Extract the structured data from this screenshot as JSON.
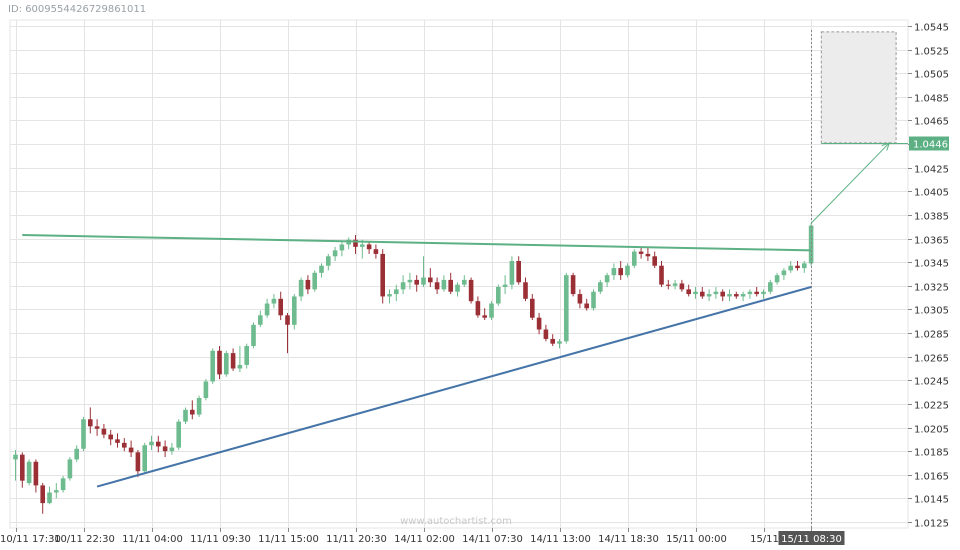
{
  "chart_id_label": "ID: 6009554426729861011",
  "watermark": "www.autochartist.com",
  "colors": {
    "bull": "#6dbb8e",
    "bear": "#9b2f36",
    "resistance": "#5cb083",
    "support": "#4574a8",
    "target": "#5cb083",
    "grid": "#e4e4e4",
    "projection_fill": "#ececec",
    "current_badge": "#555555"
  },
  "chart_data": {
    "type": "candlestick",
    "title": "",
    "xlabel": "",
    "ylabel": "",
    "ylim": [
      1.0125,
      1.0545
    ],
    "y_ticks": [
      "1.0125",
      "1.0145",
      "1.0165",
      "1.0185",
      "1.0205",
      "1.0225",
      "1.0245",
      "1.0265",
      "1.0285",
      "1.0305",
      "1.0325",
      "1.0345",
      "1.0365",
      "1.0385",
      "1.0405",
      "1.0425",
      "1.0445",
      "1.0465",
      "1.0485",
      "1.0505",
      "1.0525",
      "1.0545"
    ],
    "x_ticks": [
      "10/11 17:30",
      "10/11 22:30",
      "11/11 04:00",
      "11/11 09:30",
      "11/11 15:00",
      "11/11 20:30",
      "14/11 02:00",
      "14/11 07:30",
      "14/11 13:00",
      "14/11 18:30",
      "15/11 00:00",
      "15/11 ",
      "15/11 08:30"
    ],
    "x_tick_candle_index": [
      0,
      10,
      20,
      30,
      40,
      50,
      60,
      70,
      80,
      90,
      100,
      110,
      117
    ],
    "current_x_label": "15/11 08:30",
    "target_price": "1.0446",
    "candles": [
      [
        1.0178,
        1.0186,
        1.016,
        1.0182
      ],
      [
        1.0182,
        1.0184,
        1.0154,
        1.016
      ],
      [
        1.0158,
        1.0178,
        1.0156,
        1.0176
      ],
      [
        1.0176,
        1.0178,
        1.015,
        1.0156
      ],
      [
        1.0156,
        1.0158,
        1.0132,
        1.0141
      ],
      [
        1.0141,
        1.0155,
        1.014,
        1.015
      ],
      [
        1.015,
        1.0158,
        1.0145,
        1.0152
      ],
      [
        1.0152,
        1.0164,
        1.015,
        1.0162
      ],
      [
        1.0162,
        1.018,
        1.016,
        1.0178
      ],
      [
        1.0178,
        1.019,
        1.0176,
        1.0187
      ],
      [
        1.0187,
        1.0214,
        1.0185,
        1.0212
      ],
      [
        1.0212,
        1.0222,
        1.02,
        1.0206
      ],
      [
        1.0206,
        1.0212,
        1.0198,
        1.0204
      ],
      [
        1.0204,
        1.0208,
        1.0196,
        1.0199
      ],
      [
        1.0199,
        1.0203,
        1.019,
        1.0195
      ],
      [
        1.0195,
        1.02,
        1.0188,
        1.0192
      ],
      [
        1.0192,
        1.0196,
        1.0185,
        1.0188
      ],
      [
        1.0188,
        1.0194,
        1.018,
        1.0184
      ],
      [
        1.0184,
        1.0186,
        1.0163,
        1.0168
      ],
      [
        1.0168,
        1.0192,
        1.0166,
        1.019
      ],
      [
        1.019,
        1.0198,
        1.0186,
        1.0193
      ],
      [
        1.0193,
        1.0198,
        1.0184,
        1.0189
      ],
      [
        1.0189,
        1.0194,
        1.018,
        1.0185
      ],
      [
        1.0185,
        1.0192,
        1.0182,
        1.0188
      ],
      [
        1.0188,
        1.0212,
        1.0186,
        1.021
      ],
      [
        1.021,
        1.0222,
        1.0208,
        1.022
      ],
      [
        1.022,
        1.0228,
        1.0212,
        1.0216
      ],
      [
        1.0216,
        1.0232,
        1.0214,
        1.023
      ],
      [
        1.023,
        1.0246,
        1.0228,
        1.0244
      ],
      [
        1.0244,
        1.0272,
        1.0242,
        1.027
      ],
      [
        1.027,
        1.0274,
        1.0246,
        1.025
      ],
      [
        1.025,
        1.027,
        1.0248,
        1.0268
      ],
      [
        1.0268,
        1.0272,
        1.0253,
        1.0255
      ],
      [
        1.0255,
        1.0274,
        1.0252,
        1.0258
      ],
      [
        1.0258,
        1.0276,
        1.0255,
        1.0274
      ],
      [
        1.0274,
        1.0294,
        1.0272,
        1.0292
      ],
      [
        1.0292,
        1.0304,
        1.029,
        1.03
      ],
      [
        1.03,
        1.0314,
        1.0298,
        1.031
      ],
      [
        1.031,
        1.0318,
        1.0306,
        1.0314
      ],
      [
        1.0314,
        1.032,
        1.0296,
        1.03
      ],
      [
        1.03,
        1.0302,
        1.0268,
        1.0292
      ],
      [
        1.0292,
        1.0318,
        1.0288,
        1.0316
      ],
      [
        1.0316,
        1.0332,
        1.0312,
        1.033
      ],
      [
        1.033,
        1.0334,
        1.0318,
        1.0322
      ],
      [
        1.0322,
        1.0338,
        1.032,
        1.0336
      ],
      [
        1.0336,
        1.0344,
        1.0332,
        1.0342
      ],
      [
        1.0342,
        1.0352,
        1.0338,
        1.035
      ],
      [
        1.035,
        1.0358,
        1.0346,
        1.0355
      ],
      [
        1.0355,
        1.0362,
        1.035,
        1.036
      ],
      [
        1.036,
        1.0366,
        1.0356,
        1.0364
      ],
      [
        1.0364,
        1.0368,
        1.0352,
        1.0358
      ],
      [
        1.0358,
        1.0364,
        1.0348,
        1.036
      ],
      [
        1.036,
        1.0362,
        1.0352,
        1.0356
      ],
      [
        1.0356,
        1.036,
        1.0348,
        1.0352
      ],
      [
        1.0352,
        1.0356,
        1.031,
        1.0316
      ],
      [
        1.0316,
        1.0322,
        1.031,
        1.0318
      ],
      [
        1.0318,
        1.0326,
        1.0312,
        1.0322
      ],
      [
        1.0322,
        1.0334,
        1.0318,
        1.0328
      ],
      [
        1.0328,
        1.0336,
        1.0322,
        1.033
      ],
      [
        1.033,
        1.0334,
        1.032,
        1.0326
      ],
      [
        1.0326,
        1.035,
        1.0324,
        1.0332
      ],
      [
        1.0332,
        1.034,
        1.0324,
        1.0328
      ],
      [
        1.0328,
        1.0332,
        1.0318,
        1.0322
      ],
      [
        1.0322,
        1.0334,
        1.032,
        1.033
      ],
      [
        1.033,
        1.0336,
        1.0318,
        1.032
      ],
      [
        1.032,
        1.0328,
        1.0316,
        1.0326
      ],
      [
        1.0326,
        1.0334,
        1.0324,
        1.033
      ],
      [
        1.033,
        1.0332,
        1.031,
        1.0312
      ],
      [
        1.0312,
        1.0316,
        1.0298,
        1.03
      ],
      [
        1.03,
        1.0306,
        1.0296,
        1.0298
      ],
      [
        1.0298,
        1.0312,
        1.0296,
        1.031
      ],
      [
        1.031,
        1.0326,
        1.0308,
        1.0324
      ],
      [
        1.0324,
        1.0334,
        1.0318,
        1.0326
      ],
      [
        1.0326,
        1.035,
        1.0322,
        1.0346
      ],
      [
        1.0346,
        1.035,
        1.0326,
        1.0328
      ],
      [
        1.0328,
        1.0332,
        1.0312,
        1.0314
      ],
      [
        1.0314,
        1.0318,
        1.0296,
        1.0298
      ],
      [
        1.0298,
        1.0302,
        1.0284,
        1.0288
      ],
      [
        1.0288,
        1.0292,
        1.0278,
        1.028
      ],
      [
        1.028,
        1.0284,
        1.0274,
        1.0276
      ],
      [
        1.0276,
        1.028,
        1.0272,
        1.0278
      ],
      [
        1.0278,
        1.0336,
        1.0276,
        1.0334
      ],
      [
        1.0334,
        1.0336,
        1.0316,
        1.0318
      ],
      [
        1.0318,
        1.0322,
        1.0306,
        1.031
      ],
      [
        1.031,
        1.0314,
        1.0304,
        1.0306
      ],
      [
        1.0306,
        1.0322,
        1.0304,
        1.032
      ],
      [
        1.032,
        1.033,
        1.0318,
        1.0328
      ],
      [
        1.0328,
        1.0336,
        1.0324,
        1.0334
      ],
      [
        1.0334,
        1.0344,
        1.033,
        1.034
      ],
      [
        1.034,
        1.0346,
        1.033,
        1.0334
      ],
      [
        1.0334,
        1.0344,
        1.0332,
        1.0342
      ],
      [
        1.0342,
        1.0356,
        1.034,
        1.0354
      ],
      [
        1.0354,
        1.0358,
        1.0348,
        1.0352
      ],
      [
        1.0352,
        1.0358,
        1.0346,
        1.035
      ],
      [
        1.035,
        1.0354,
        1.034,
        1.0342
      ],
      [
        1.0342,
        1.0346,
        1.0324,
        1.0326
      ],
      [
        1.0326,
        1.033,
        1.0322,
        1.0325
      ],
      [
        1.0325,
        1.033,
        1.0322,
        1.0327
      ],
      [
        1.0327,
        1.033,
        1.032,
        1.0322
      ],
      [
        1.0322,
        1.0326,
        1.0316,
        1.0318
      ],
      [
        1.0318,
        1.0324,
        1.0314,
        1.032
      ],
      [
        1.032,
        1.0324,
        1.0314,
        1.0316
      ],
      [
        1.0316,
        1.0322,
        1.0312,
        1.0318
      ],
      [
        1.0318,
        1.0324,
        1.0314,
        1.032
      ],
      [
        1.032,
        1.0322,
        1.0312,
        1.0316
      ],
      [
        1.0316,
        1.0322,
        1.0312,
        1.0318
      ],
      [
        1.0318,
        1.032,
        1.0314,
        1.0316
      ],
      [
        1.0316,
        1.032,
        1.0312,
        1.0318
      ],
      [
        1.0318,
        1.0322,
        1.0314,
        1.032
      ],
      [
        1.032,
        1.0324,
        1.0316,
        1.0318
      ],
      [
        1.0318,
        1.0322,
        1.0314,
        1.032
      ],
      [
        1.032,
        1.033,
        1.0318,
        1.0328
      ],
      [
        1.0328,
        1.0336,
        1.0326,
        1.0334
      ],
      [
        1.0334,
        1.034,
        1.033,
        1.0338
      ],
      [
        1.0338,
        1.0346,
        1.0336,
        1.0342
      ],
      [
        1.0342,
        1.0346,
        1.0338,
        1.034
      ],
      [
        1.034,
        1.0346,
        1.0336,
        1.0344
      ],
      [
        1.0344,
        1.0378,
        1.0342,
        1.0376
      ]
    ],
    "resistance_line": {
      "from": [
        1,
        1.0368
      ],
      "to": [
        117,
        1.0355
      ]
    },
    "support_line": {
      "from": [
        12,
        1.0155
      ],
      "to": [
        117,
        1.0324
      ]
    },
    "projection": {
      "price_top": 1.054,
      "price_bottom": 1.0446,
      "start_index": 118.5,
      "end_index": 129.5
    },
    "target_arrow": {
      "from": [
        117,
        1.0378
      ],
      "to": [
        128.5,
        1.0446
      ]
    }
  }
}
